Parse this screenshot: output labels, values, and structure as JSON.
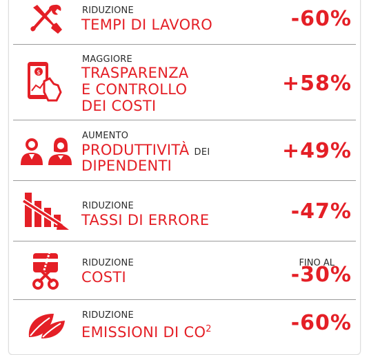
{
  "theme": {
    "accent": "#e41f26",
    "text": "#2a2a2a"
  },
  "rows": [
    {
      "icon": "tools-icon",
      "label": "RIDUZIONE",
      "title_lines": [
        "TEMPI DI LAVORO"
      ],
      "value": "-60%"
    },
    {
      "icon": "tablet-money-icon",
      "label": "MAGGIORE",
      "title_lines": [
        "TRASPARENZA",
        "E CONTROLLO",
        "DEI COSTI"
      ],
      "value": "+58%"
    },
    {
      "icon": "people-icon",
      "label": "AUMENTO",
      "title_main": "PRODUTTIVITÀ",
      "title_suffix": "DEI",
      "title_line2": "DIPENDENTI",
      "value": "+49%"
    },
    {
      "icon": "declining-bars-icon",
      "label": "RIDUZIONE",
      "title_lines": [
        "TASSI DI ERRORE"
      ],
      "value": "-47%"
    },
    {
      "icon": "card-scissors-icon",
      "label": "RIDUZIONE",
      "title_lines": [
        "COSTI"
      ],
      "prefix": "FINO AL",
      "value": "-30%"
    },
    {
      "icon": "leaves-icon",
      "label": "RIDUZIONE",
      "title_main": "EMISSIONI DI CO",
      "title_sup": "2",
      "value": "-60%"
    }
  ]
}
